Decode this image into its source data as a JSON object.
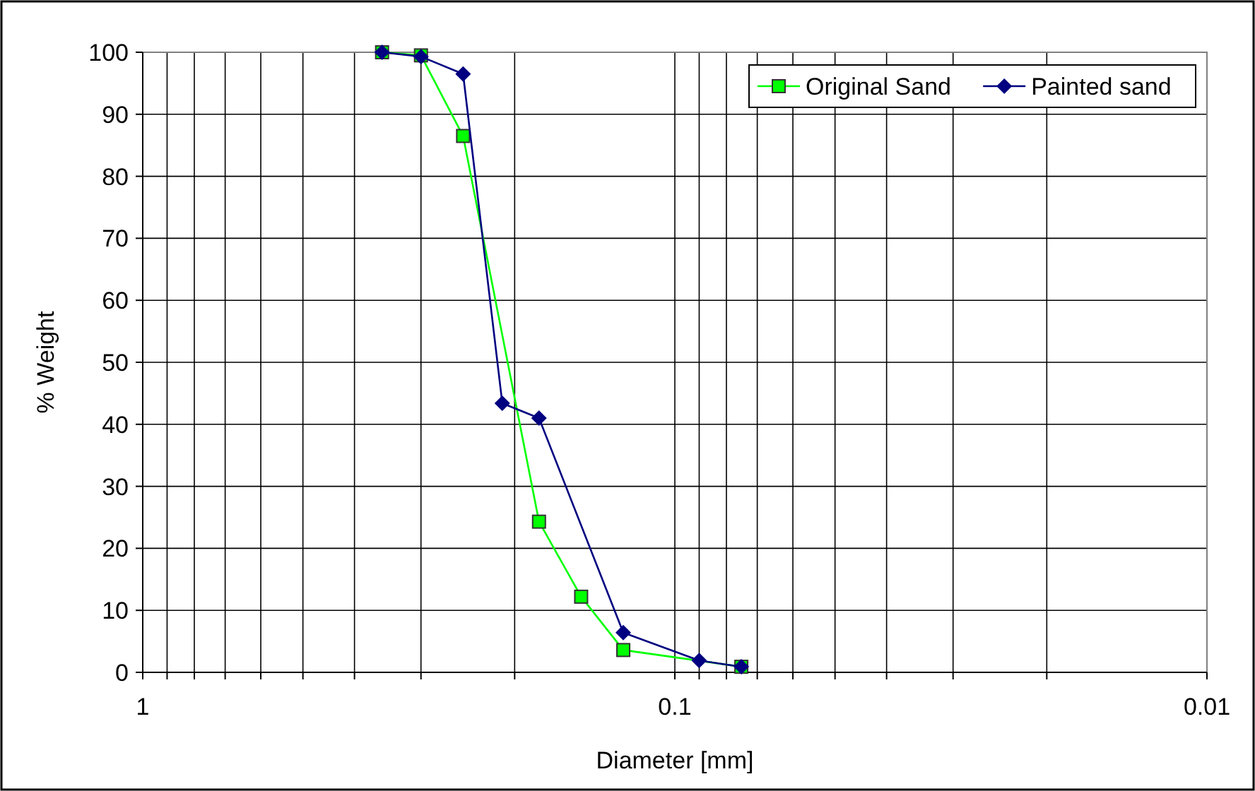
{
  "chart_data": {
    "type": "line",
    "xlabel": "Diameter [mm]",
    "ylabel": "% Weight",
    "log": "x",
    "xlim": [
      1,
      0.01
    ],
    "xticks": [
      1,
      {
        "value": 0.9,
        "label": null
      },
      {
        "value": 0.8,
        "label": null
      },
      {
        "value": 0.7,
        "label": null
      },
      {
        "value": 0.6,
        "label": null
      },
      {
        "value": 0.5,
        "label": null
      },
      {
        "value": 0.4,
        "label": null
      },
      {
        "value": 0.3,
        "label": null
      },
      {
        "value": 0.2,
        "label": null
      },
      0.1,
      {
        "value": 0.09,
        "label": null
      },
      {
        "value": 0.08,
        "label": null
      },
      {
        "value": 0.07,
        "label": null
      },
      {
        "value": 0.06,
        "label": null
      },
      {
        "value": 0.05,
        "label": null
      },
      {
        "value": 0.04,
        "label": null
      },
      {
        "value": 0.03,
        "label": null
      },
      {
        "value": 0.02,
        "label": null
      },
      0.01
    ],
    "ylim": [
      0,
      100
    ],
    "yticks": [
      0,
      10,
      20,
      30,
      40,
      50,
      60,
      70,
      80,
      90,
      100
    ],
    "grid": true,
    "legend": "top right",
    "series": [
      {
        "name": "Original Sand",
        "color": "#00ff00",
        "marker": "square",
        "x": [
          0.355,
          0.3,
          0.25,
          0.18,
          0.15,
          0.125,
          0.075
        ],
        "values": [
          100,
          99.5,
          86.5,
          24.3,
          12.2,
          3.6,
          0.9
        ]
      },
      {
        "name": "Painted sand",
        "color": "#000080",
        "marker": "diamond",
        "x": [
          0.355,
          0.3,
          0.25,
          0.211,
          0.18,
          0.125,
          0.09,
          0.075
        ],
        "values": [
          100,
          99.3,
          96.5,
          43.4,
          41,
          6.4,
          1.9,
          0.9
        ]
      }
    ]
  }
}
